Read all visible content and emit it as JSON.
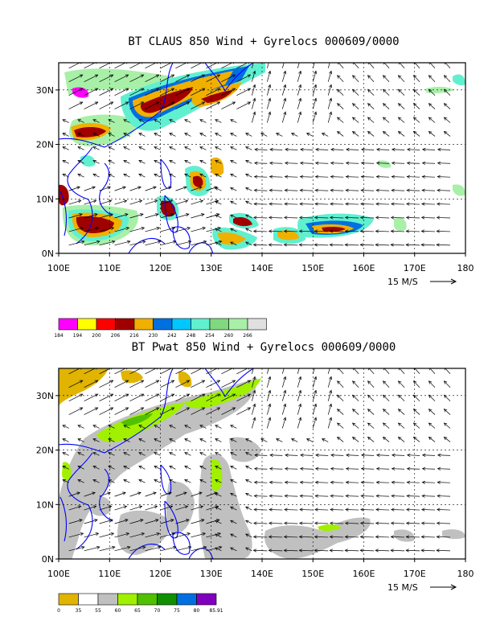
{
  "panels": [
    {
      "id": "top",
      "title": "BT CLAUS 850 Wind + Gyrelocs 000609/0000",
      "x_ticks": [
        "100E",
        "110E",
        "120E",
        "130E",
        "140E",
        "150E",
        "160E",
        "170E",
        "180"
      ],
      "y_ticks": [
        "0N",
        "10N",
        "20N",
        "30N"
      ],
      "vector_ref": "15 M/S",
      "colorbar": {
        "labels": [
          "184",
          "194",
          "200",
          "206",
          "216",
          "230",
          "242",
          "248",
          "254",
          "260",
          "266"
        ],
        "colors": [
          "#ff00ff",
          "#ffff00",
          "#ff0000",
          "#a00000",
          "#f0b000",
          "#0070e0",
          "#00c8ff",
          "#60f0d0",
          "#80d880",
          "#a8f0a8",
          "#e0e0e0"
        ]
      }
    },
    {
      "id": "bottom",
      "title": "BT Pwat 850 Wind + Gyrelocs 000609/0000",
      "x_ticks": [
        "100E",
        "110E",
        "120E",
        "130E",
        "140E",
        "150E",
        "160E",
        "170E",
        "180"
      ],
      "y_ticks": [
        "0N",
        "10N",
        "20N",
        "30N"
      ],
      "vector_ref": "15 M/S",
      "colorbar": {
        "labels": [
          "0",
          "35",
          "55",
          "60",
          "65",
          "70",
          "75",
          "80",
          "85.91"
        ],
        "colors": [
          "#e0b400",
          "#ffffff",
          "#c0c0c0",
          "#a0f000",
          "#50c000",
          "#109000",
          "#0070e0",
          "#8000c0"
        ]
      }
    }
  ],
  "map": {
    "lon_range": [
      100,
      180
    ],
    "lat_range": [
      0,
      35
    ],
    "coast_color": "#0000ff"
  }
}
